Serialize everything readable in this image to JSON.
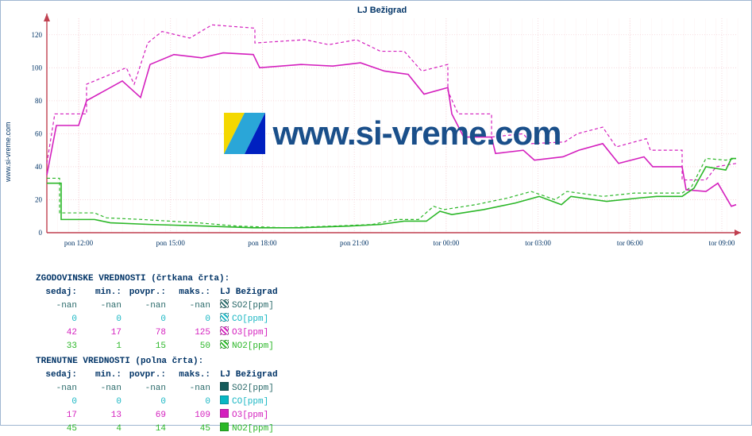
{
  "title": "LJ Bežigrad",
  "y_axis_site": "www.si-vreme.com",
  "watermark_text": "www.si-vreme.com",
  "chart": {
    "background_color": "#ffffff",
    "grid_major_color": "#f4d0d6",
    "grid_minor_color": "#fef4f4",
    "axis_color": "#c04050",
    "xlim": [
      0,
      870
    ],
    "ylim": [
      0,
      130
    ],
    "ytick_step": 20,
    "yticks": [
      0,
      20,
      40,
      60,
      80,
      100,
      120
    ],
    "xticks": [
      "pon 12:00",
      "pon 15:00",
      "pon 18:00",
      "pon 21:00",
      "tor 00:00",
      "tor 03:00",
      "tor 06:00",
      "tor 09:00"
    ],
    "series": [
      {
        "name": "O3_hist",
        "color": "#d41fbe",
        "dash": "4 3",
        "width": 1.2,
        "points": [
          [
            0,
            42
          ],
          [
            10,
            72
          ],
          [
            50,
            72
          ],
          [
            50,
            90
          ],
          [
            100,
            100
          ],
          [
            110,
            90
          ],
          [
            127,
            115
          ],
          [
            145,
            122
          ],
          [
            180,
            118
          ],
          [
            208,
            126
          ],
          [
            262,
            124
          ],
          [
            262,
            115
          ],
          [
            325,
            117
          ],
          [
            355,
            114
          ],
          [
            390,
            117
          ],
          [
            420,
            110
          ],
          [
            450,
            110
          ],
          [
            472,
            98
          ],
          [
            505,
            102
          ],
          [
            505,
            86
          ],
          [
            518,
            72
          ],
          [
            560,
            72
          ],
          [
            560,
            58
          ],
          [
            600,
            60
          ],
          [
            610,
            54
          ],
          [
            652,
            55
          ],
          [
            668,
            60
          ],
          [
            700,
            64
          ],
          [
            717,
            52
          ],
          [
            755,
            57
          ],
          [
            760,
            50
          ],
          [
            800,
            50
          ],
          [
            800,
            32
          ],
          [
            830,
            32
          ],
          [
            843,
            40
          ],
          [
            868,
            42
          ]
        ]
      },
      {
        "name": "NO2_hist",
        "color": "#2bb728",
        "dash": "4 3",
        "width": 1.2,
        "points": [
          [
            0,
            33
          ],
          [
            16,
            33
          ],
          [
            16,
            12
          ],
          [
            60,
            12
          ],
          [
            75,
            9
          ],
          [
            120,
            8
          ],
          [
            190,
            6
          ],
          [
            240,
            4
          ],
          [
            300,
            3
          ],
          [
            360,
            4
          ],
          [
            410,
            5
          ],
          [
            440,
            8
          ],
          [
            468,
            8
          ],
          [
            487,
            16
          ],
          [
            500,
            14
          ],
          [
            540,
            17
          ],
          [
            580,
            21
          ],
          [
            610,
            25
          ],
          [
            640,
            20
          ],
          [
            655,
            25
          ],
          [
            700,
            22
          ],
          [
            740,
            24
          ],
          [
            760,
            24
          ],
          [
            800,
            24
          ],
          [
            812,
            28
          ],
          [
            830,
            45
          ],
          [
            855,
            44
          ],
          [
            868,
            45
          ]
        ]
      },
      {
        "name": "O3_curr",
        "color": "#d41fbe",
        "dash": "",
        "width": 1.6,
        "points": [
          [
            0,
            35
          ],
          [
            12,
            65
          ],
          [
            40,
            65
          ],
          [
            50,
            80
          ],
          [
            95,
            92
          ],
          [
            118,
            82
          ],
          [
            130,
            102
          ],
          [
            160,
            108
          ],
          [
            195,
            106
          ],
          [
            222,
            109
          ],
          [
            260,
            108
          ],
          [
            268,
            100
          ],
          [
            320,
            102
          ],
          [
            360,
            101
          ],
          [
            395,
            103
          ],
          [
            425,
            98
          ],
          [
            455,
            96
          ],
          [
            475,
            84
          ],
          [
            505,
            88
          ],
          [
            510,
            72
          ],
          [
            525,
            58
          ],
          [
            560,
            58
          ],
          [
            565,
            48
          ],
          [
            600,
            50
          ],
          [
            614,
            44
          ],
          [
            650,
            46
          ],
          [
            670,
            50
          ],
          [
            700,
            54
          ],
          [
            720,
            42
          ],
          [
            752,
            46
          ],
          [
            763,
            40
          ],
          [
            800,
            40
          ],
          [
            805,
            26
          ],
          [
            830,
            25
          ],
          [
            845,
            30
          ],
          [
            862,
            16
          ],
          [
            868,
            17
          ]
        ]
      },
      {
        "name": "NO2_curr",
        "color": "#2bb728",
        "dash": "",
        "width": 1.6,
        "points": [
          [
            0,
            30
          ],
          [
            18,
            30
          ],
          [
            18,
            8
          ],
          [
            60,
            8
          ],
          [
            80,
            6
          ],
          [
            130,
            5
          ],
          [
            200,
            4
          ],
          [
            260,
            3
          ],
          [
            320,
            3
          ],
          [
            380,
            4
          ],
          [
            420,
            5
          ],
          [
            450,
            7
          ],
          [
            478,
            7
          ],
          [
            495,
            13
          ],
          [
            510,
            11
          ],
          [
            550,
            14
          ],
          [
            590,
            18
          ],
          [
            620,
            22
          ],
          [
            648,
            17
          ],
          [
            660,
            22
          ],
          [
            705,
            19
          ],
          [
            745,
            21
          ],
          [
            768,
            22
          ],
          [
            800,
            22
          ],
          [
            815,
            27
          ],
          [
            830,
            40
          ],
          [
            855,
            38
          ],
          [
            862,
            45
          ],
          [
            868,
            45
          ]
        ]
      }
    ]
  },
  "stats": {
    "hist_title": "ZGODOVINSKE VREDNOSTI (črtkana črta):",
    "curr_title": "TRENUTNE VREDNOSTI (polna črta):",
    "cols": {
      "sedaj": "sedaj:",
      "min": "min.:",
      "povpr": "povpr.:",
      "maks": "maks.:"
    },
    "location": "LJ Bežigrad",
    "hist_rows": [
      {
        "key": "SO2",
        "label": "SO2[ppm]",
        "color": "#2a6a6a",
        "swatch": "#2a6a6a",
        "sedaj": "-nan",
        "min": "-nan",
        "povpr": "-nan",
        "maks": "-nan"
      },
      {
        "key": "CO",
        "label": "CO[ppm]",
        "color": "#1ab7c4",
        "swatch": "#1ab7c4",
        "sedaj": "0",
        "min": "0",
        "povpr": "0",
        "maks": "0"
      },
      {
        "key": "O3",
        "label": "O3[ppm]",
        "color": "#d41fbe",
        "swatch": "#d41fbe",
        "sedaj": "42",
        "min": "17",
        "povpr": "78",
        "maks": "125"
      },
      {
        "key": "NO2",
        "label": "NO2[ppm]",
        "color": "#2bb728",
        "swatch": "#2bb728",
        "sedaj": "33",
        "min": "1",
        "povpr": "15",
        "maks": "50"
      }
    ],
    "curr_rows": [
      {
        "key": "SO2",
        "label": "SO2[ppm]",
        "color": "#2a6a6a",
        "swatch": "#145a5a",
        "sedaj": "-nan",
        "min": "-nan",
        "povpr": "-nan",
        "maks": "-nan"
      },
      {
        "key": "CO",
        "label": "CO[ppm]",
        "color": "#1ab7c4",
        "swatch": "#07b7c4",
        "sedaj": "0",
        "min": "0",
        "povpr": "0",
        "maks": "0"
      },
      {
        "key": "O3",
        "label": "O3[ppm]",
        "color": "#d41fbe",
        "swatch": "#d41fbe",
        "sedaj": "17",
        "min": "13",
        "povpr": "69",
        "maks": "109"
      },
      {
        "key": "NO2",
        "label": "NO2[ppm]",
        "color": "#2bb728",
        "swatch": "#2bb728",
        "sedaj": "45",
        "min": "4",
        "povpr": "14",
        "maks": "45"
      }
    ]
  }
}
